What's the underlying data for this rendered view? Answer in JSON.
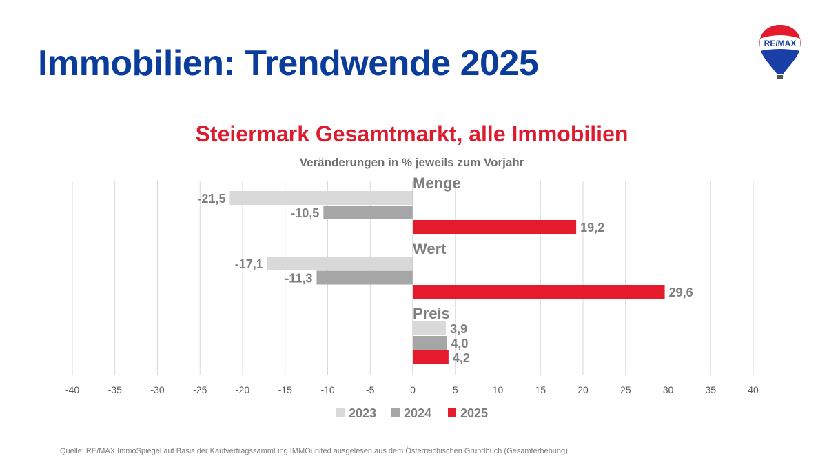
{
  "title": "Immobilien: Trendwende 2025",
  "logo_text": "RE/MAX",
  "source": "Quelle: RE/MAX ImmoSpiegel auf Basis der Kaufvertragssammlung IMMOunited ausgelesen aus dem Österreichischen Grundbuch (Gesamterhebung)",
  "chart_data": {
    "type": "bar",
    "orientation": "horizontal",
    "title": "Steiermark Gesamtmarkt, alle Immobilien",
    "subtitle": "Veränderungen in % jeweils zum Vorjahr",
    "categories": [
      "Menge",
      "Wert",
      "Preis"
    ],
    "series": [
      {
        "name": "2023",
        "color": "#d9d9d9",
        "values": [
          -21.5,
          -17.1,
          3.9
        ]
      },
      {
        "name": "2024",
        "color": "#a6a6a6",
        "values": [
          -10.5,
          -11.3,
          4.0
        ]
      },
      {
        "name": "2025",
        "color": "#e31b2d",
        "values": [
          19.2,
          29.6,
          4.2
        ]
      }
    ],
    "xlim": [
      -40,
      40
    ],
    "xticks": [
      -40,
      -35,
      -30,
      -25,
      -20,
      -15,
      -10,
      -5,
      0,
      5,
      10,
      15,
      20,
      25,
      30,
      35,
      40
    ],
    "grid": true,
    "legend": "bottom",
    "decimal_separator": ","
  }
}
